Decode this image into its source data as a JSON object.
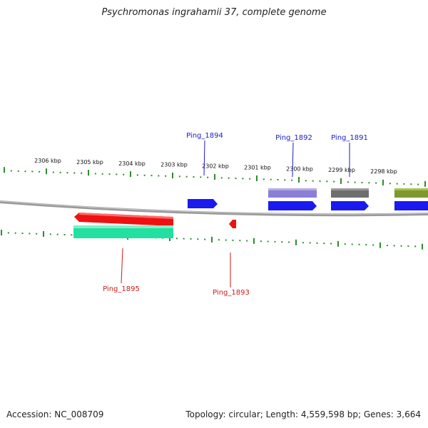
{
  "title": "Psychromonas ingrahamii 37, complete genome",
  "footer": {
    "accession": "Accession: NC_008709",
    "summary": "Topology: circular; Length: 4,559,598 bp; Genes: 3,664"
  },
  "colors": {
    "tick": "#2e8b2e",
    "backbone": "#8a8a8a",
    "forward_label": "#1a1acc",
    "reverse_label": "#cc1a1a"
  },
  "scale": {
    "unit": "kbp",
    "labels": [
      "2306 kbp",
      "2305 kbp",
      "2304 kbp",
      "2303 kbp",
      "2302 kbp",
      "2301 kbp",
      "2300 kbp",
      "2299 kbp",
      "2298 kbp"
    ]
  },
  "genes": [
    {
      "label": "Ping_1894",
      "strand": "forward",
      "color": "#1a1aee"
    },
    {
      "label": "Ping_1892",
      "strand": "forward",
      "color": "#1a1aee"
    },
    {
      "label": "Ping_1891",
      "strand": "forward",
      "color": "#1a1aee"
    },
    {
      "label": "",
      "strand": "forward",
      "color": "#1a1aee"
    },
    {
      "label": "Ping_1895",
      "strand": "reverse",
      "color": "#ee1111"
    },
    {
      "label": "Ping_1893",
      "strand": "reverse",
      "color": "#ee1111"
    }
  ],
  "features": [
    {
      "type": "forward-feature",
      "color": "#8a7ed6"
    },
    {
      "type": "forward-feature",
      "color": "#6e6e6e"
    },
    {
      "type": "forward-feature",
      "color": "#7d9a2a"
    },
    {
      "type": "reverse-feature",
      "color": "#22e0a0"
    }
  ]
}
